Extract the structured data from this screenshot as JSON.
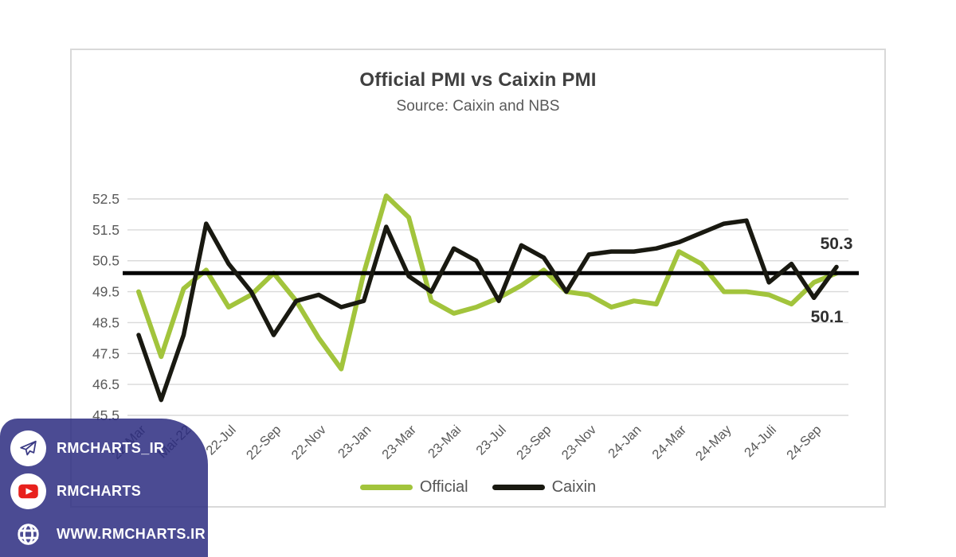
{
  "chart_data": {
    "type": "line",
    "title": "Official PMI vs Caixin PMI",
    "subtitle": "Source: Caixin and NBS",
    "ylim": [
      45.5,
      52.5
    ],
    "y_ticks": [
      52.5,
      51.5,
      50.5,
      49.5,
      48.5,
      47.5,
      46.5,
      45.5
    ],
    "x_tick_labels": [
      "22-Mar",
      "Mai-22",
      "22-Jul",
      "22-Sep",
      "22-Nov",
      "23-Jan",
      "23-Mar",
      "23-Mai",
      "23-Jul",
      "23-Sep",
      "23-Nov",
      "24-Jan",
      "24-Mar",
      "24-May",
      "24-Juli",
      "24-Sep"
    ],
    "x_ticks_every": 2,
    "grid": true,
    "legend_position": "bottom",
    "reference_line": 50.1,
    "series": [
      {
        "name": "Official",
        "color": "#a2c43c",
        "values": [
          49.5,
          47.4,
          49.6,
          50.2,
          49.0,
          49.4,
          50.1,
          49.2,
          48.0,
          47.0,
          50.1,
          52.6,
          51.9,
          49.2,
          48.8,
          49.0,
          49.3,
          49.7,
          50.2,
          49.5,
          49.4,
          49.0,
          49.2,
          49.1,
          50.8,
          50.4,
          49.5,
          49.5,
          49.4,
          49.1,
          49.8,
          50.1
        ]
      },
      {
        "name": "Caixin",
        "color": "#191911",
        "values": [
          48.1,
          46.0,
          48.1,
          51.7,
          50.4,
          49.5,
          48.1,
          49.2,
          49.4,
          49.0,
          49.2,
          51.6,
          50.0,
          49.5,
          50.9,
          50.5,
          49.2,
          51.0,
          50.6,
          49.5,
          50.7,
          50.8,
          50.8,
          50.9,
          51.1,
          51.4,
          51.7,
          51.8,
          49.8,
          50.4,
          49.3,
          50.3
        ]
      }
    ],
    "end_labels": [
      {
        "series": "Caixin",
        "text": "50.3"
      },
      {
        "series": "Official",
        "text": "50.1"
      }
    ],
    "colors": {
      "grid": "#d9d9d9",
      "axis_text": "#595959",
      "reference": "#000000",
      "end_label": "#2f2f2f"
    }
  },
  "watermark": {
    "background": "#2b2b80",
    "youtube_red": "#e8211d",
    "items": [
      {
        "icon": "telegram-icon",
        "label": "RMCHARTS_IR"
      },
      {
        "icon": "youtube-icon",
        "label": "RMCHARTS"
      },
      {
        "icon": "globe-icon",
        "label": "WWW.RMCHARTS.IR"
      }
    ]
  }
}
